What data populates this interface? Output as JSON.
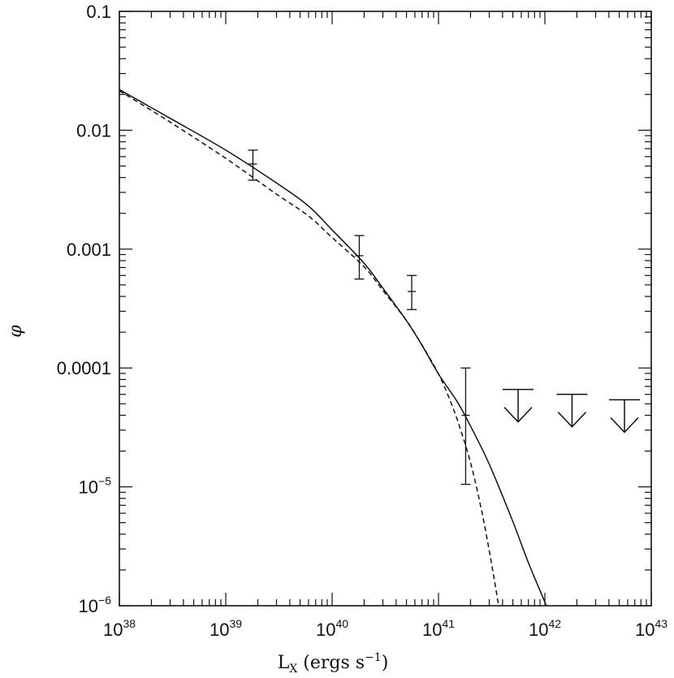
{
  "chart_data": {
    "type": "line",
    "title": "",
    "xlabel": "L_X (ergs s^-1)",
    "xlabel_parts": {
      "main": "L",
      "sub": "X",
      "rest": " (ergs s",
      "sup": "−1",
      "close": ")"
    },
    "ylabel": "φ",
    "x_scale": "log",
    "y_scale": "log",
    "xlim": [
      1e+38,
      1e+43
    ],
    "ylim": [
      1e-06,
      0.1
    ],
    "x_ticks": [
      {
        "value": 1e+38,
        "base": "10",
        "exp": "38"
      },
      {
        "value": 1e+39,
        "base": "10",
        "exp": "39"
      },
      {
        "value": 1e+40,
        "base": "10",
        "exp": "40"
      },
      {
        "value": 1e+41,
        "base": "10",
        "exp": "41"
      },
      {
        "value": 1e+42,
        "base": "10",
        "exp": "42"
      },
      {
        "value": 1e+43,
        "base": "10",
        "exp": "43"
      }
    ],
    "y_ticks": [
      {
        "value": 0.1,
        "text": "0.1",
        "base": "",
        "exp": ""
      },
      {
        "value": 0.01,
        "text": "0.01",
        "base": "",
        "exp": ""
      },
      {
        "value": 0.001,
        "text": "0.001",
        "base": "",
        "exp": ""
      },
      {
        "value": 0.0001,
        "text": "0.0001",
        "base": "",
        "exp": ""
      },
      {
        "value": 1e-05,
        "text": "",
        "base": "10",
        "exp": "−5"
      },
      {
        "value": 1e-06,
        "text": "",
        "base": "10",
        "exp": "−6"
      }
    ],
    "series": [
      {
        "style": "solid",
        "x": [
          1e+38,
          3e+38,
          1e+39,
          3e+39,
          6e+39,
          1e+40,
          2e+40,
          3e+40,
          5e+40,
          7e+40,
          1e+41,
          1.5e+41,
          2e+41,
          3e+41,
          5e+41,
          7e+41,
          1e+42,
          1.2e+42
        ],
        "y": [
          0.022,
          0.0126,
          0.0068,
          0.0036,
          0.0023,
          0.00145,
          0.00076,
          0.00047,
          0.00025,
          0.000155,
          8.9e-05,
          5.2e-05,
          3.25e-05,
          1.55e-05,
          5.1e-06,
          2.3e-06,
          1.07e-06,
          7e-07
        ]
      },
      {
        "style": "dashed",
        "x": [
          1e+38,
          3e+38,
          1e+39,
          3e+39,
          6e+39,
          1e+40,
          2e+40,
          3e+40,
          5e+40,
          7e+40,
          1e+41,
          1.3e+41,
          1.6e+41,
          2e+41,
          2.5e+41,
          3e+41,
          3.5e+41,
          4e+41
        ],
        "y": [
          0.0215,
          0.0117,
          0.0058,
          0.0029,
          0.0019,
          0.00125,
          0.00071,
          0.00045,
          0.00025,
          0.000156,
          8.9e-05,
          5.2e-05,
          3.1e-05,
          1.6e-05,
          6.8e-06,
          2.9e-06,
          1.3e-06,
          6e-07
        ]
      }
    ],
    "data_points": [
      {
        "x": 1.8e+39,
        "y": 0.0052,
        "y_low": 0.0038,
        "y_high": 0.0068
      },
      {
        "x": 1.8e+40,
        "y": 0.00088,
        "y_low": 0.00056,
        "y_high": 0.0013
      },
      {
        "x": 5.6e+40,
        "y": 0.00044,
        "y_low": 0.00031,
        "y_high": 0.0006
      },
      {
        "x": 1.8e+41,
        "y": 4e-05,
        "y_low": 1.05e-05,
        "y_high": 0.0001
      }
    ],
    "upper_limits": [
      {
        "x": 5.6e+41,
        "y": 6.6e-05
      },
      {
        "x": 1.8e+42,
        "y": 6e-05
      },
      {
        "x": 5.6e+42,
        "y": 5.4e-05
      }
    ],
    "grid": false,
    "legend": "none"
  }
}
